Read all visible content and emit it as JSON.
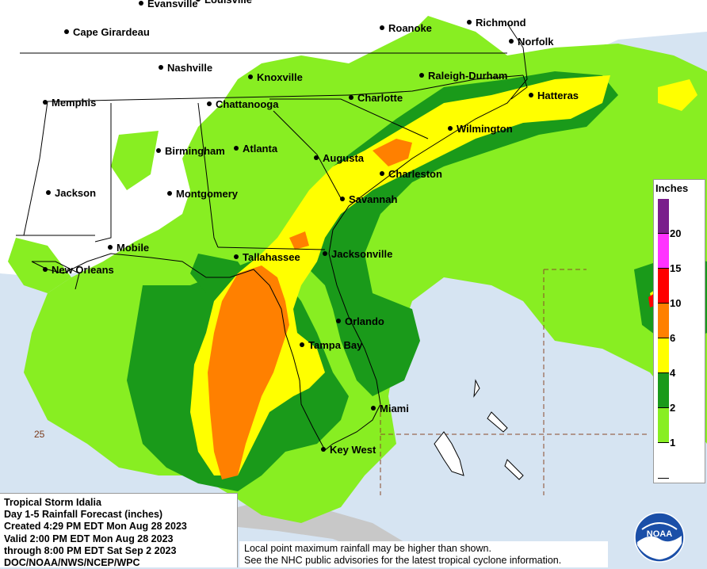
{
  "map": {
    "cities": [
      {
        "name": "Evansville"
      },
      {
        "name": "Louisville"
      },
      {
        "name": "Richmond"
      },
      {
        "name": "Cape Girardeau"
      },
      {
        "name": "Roanoke"
      },
      {
        "name": "Norfolk"
      },
      {
        "name": "Nashville"
      },
      {
        "name": "Knoxville"
      },
      {
        "name": "Raleigh-Durham"
      },
      {
        "name": "Memphis"
      },
      {
        "name": "Chattanooga"
      },
      {
        "name": "Charlotte"
      },
      {
        "name": "Hatteras"
      },
      {
        "name": "Wilmington"
      },
      {
        "name": "Birmingham"
      },
      {
        "name": "Atlanta"
      },
      {
        "name": "Augusta"
      },
      {
        "name": "Charleston"
      },
      {
        "name": "Jackson"
      },
      {
        "name": "Montgomery"
      },
      {
        "name": "Savannah"
      },
      {
        "name": "Mobile"
      },
      {
        "name": "Tallahassee"
      },
      {
        "name": "Jacksonville"
      },
      {
        "name": "New Orleans"
      },
      {
        "name": "Orlando"
      },
      {
        "name": "Tampa Bay"
      },
      {
        "name": "Miami"
      },
      {
        "name": "Key West"
      }
    ],
    "latitude_label": "25"
  },
  "legend": {
    "title": "Inches",
    "thresholds": [
      "20",
      "15",
      "10",
      "6",
      "4",
      "2",
      "1"
    ],
    "colors": [
      "#7a1e8c",
      "#ff33ff",
      "#ff0000",
      "#ff8000",
      "#ffff00",
      "#1a9a1a",
      "#88ee22",
      "#ffffff"
    ]
  },
  "info": {
    "lines": [
      "Tropical Storm Idalia",
      "Day 1-5 Rainfall Forecast (inches)",
      "Created 4:29 PM EDT Mon Aug 28 2023",
      "Valid 2:00 PM EDT Mon Aug 28 2023",
      "through 8:00 PM EDT Sat Sep 2 2023",
      "DOC/NOAA/NWS/NCEP/WPC"
    ]
  },
  "disclaimer": {
    "line1": "Local point maximum rainfall may be higher than shown.",
    "line2": "See the NHC public advisories for the latest tropical cyclone information."
  },
  "logo": {
    "text": "NOAA"
  },
  "colors": {
    "ocean": "#d6e4f2",
    "land": "#ffffff",
    "light_green": "#88ee22",
    "dark_green": "#1a9a1a",
    "yellow": "#ffff00",
    "orange": "#ff8000",
    "red": "#ff0000"
  }
}
